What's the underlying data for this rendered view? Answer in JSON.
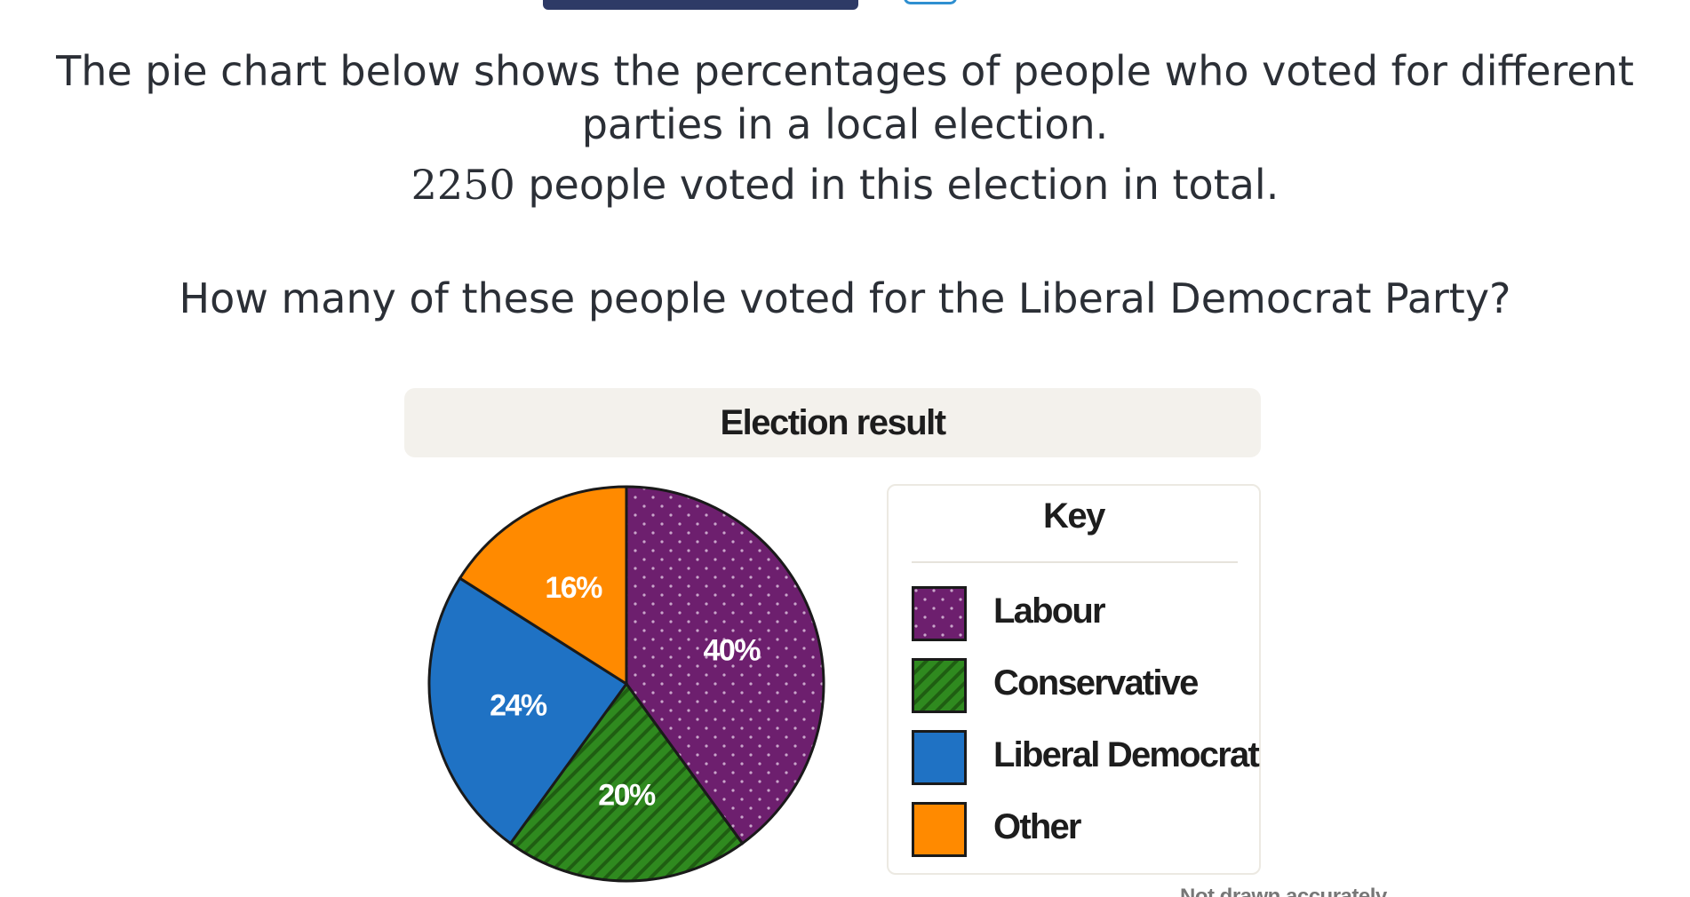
{
  "question": {
    "line1": "The pie chart below shows the percentages of people who voted for different",
    "line2": "parties in a local election.",
    "total_number": "2250",
    "line3_rest": " people voted in this election in total.",
    "prompt": "How many of these people voted for the Liberal Democrat Party?"
  },
  "chart_data": {
    "type": "pie",
    "title": "Election result",
    "legend_title": "Key",
    "legend_placement": "right",
    "categories": [
      "Labour",
      "Conservative",
      "Liberal Democrat",
      "Other"
    ],
    "values": [
      40,
      20,
      24,
      16
    ],
    "value_labels": [
      "40%",
      "20%",
      "24%",
      "16%"
    ],
    "colors": [
      "#6d1f6e",
      "#2f8a1f",
      "#1f72c4",
      "#ff8a00"
    ],
    "patterns": [
      "dots",
      "diagonal-stripes",
      "solid",
      "solid"
    ],
    "note": "Not drawn accurately"
  }
}
